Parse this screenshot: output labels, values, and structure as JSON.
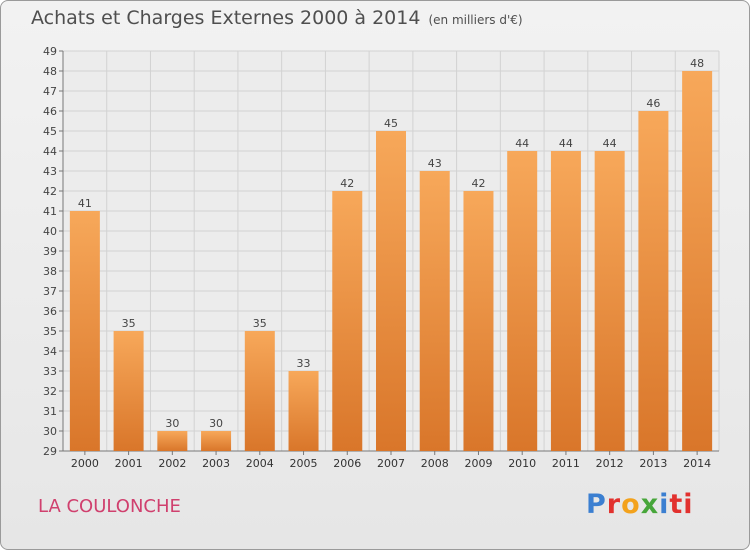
{
  "header": {
    "title": "Achats et Charges Externes 2000 à 2014",
    "unit": "(en milliers d'€)"
  },
  "footer": {
    "place": "LA COULONCHE",
    "brand": "Proxiti",
    "brand_letters": [
      "P",
      "r",
      "o",
      "x",
      "i",
      "ti"
    ]
  },
  "colors": {
    "bar_light": "#f7a85a",
    "bar_dark": "#d9762a",
    "title": "#4f4f4f",
    "place": "#d0406e"
  },
  "chart_data": {
    "type": "bar",
    "title": "Achats et Charges Externes 2000 à 2014",
    "categories": [
      "2000",
      "2001",
      "2002",
      "2003",
      "2004",
      "2005",
      "2006",
      "2007",
      "2008",
      "2009",
      "2010",
      "2011",
      "2012",
      "2013",
      "2014"
    ],
    "values": [
      41,
      35,
      30,
      30,
      35,
      33,
      42,
      45,
      43,
      42,
      44,
      44,
      44,
      46,
      48
    ],
    "ylim": [
      29,
      49
    ],
    "yticks": [
      29,
      30,
      31,
      32,
      33,
      34,
      35,
      36,
      37,
      38,
      39,
      40,
      41,
      42,
      43,
      44,
      45,
      46,
      47,
      48,
      49
    ],
    "grid": true,
    "legend": "none"
  }
}
